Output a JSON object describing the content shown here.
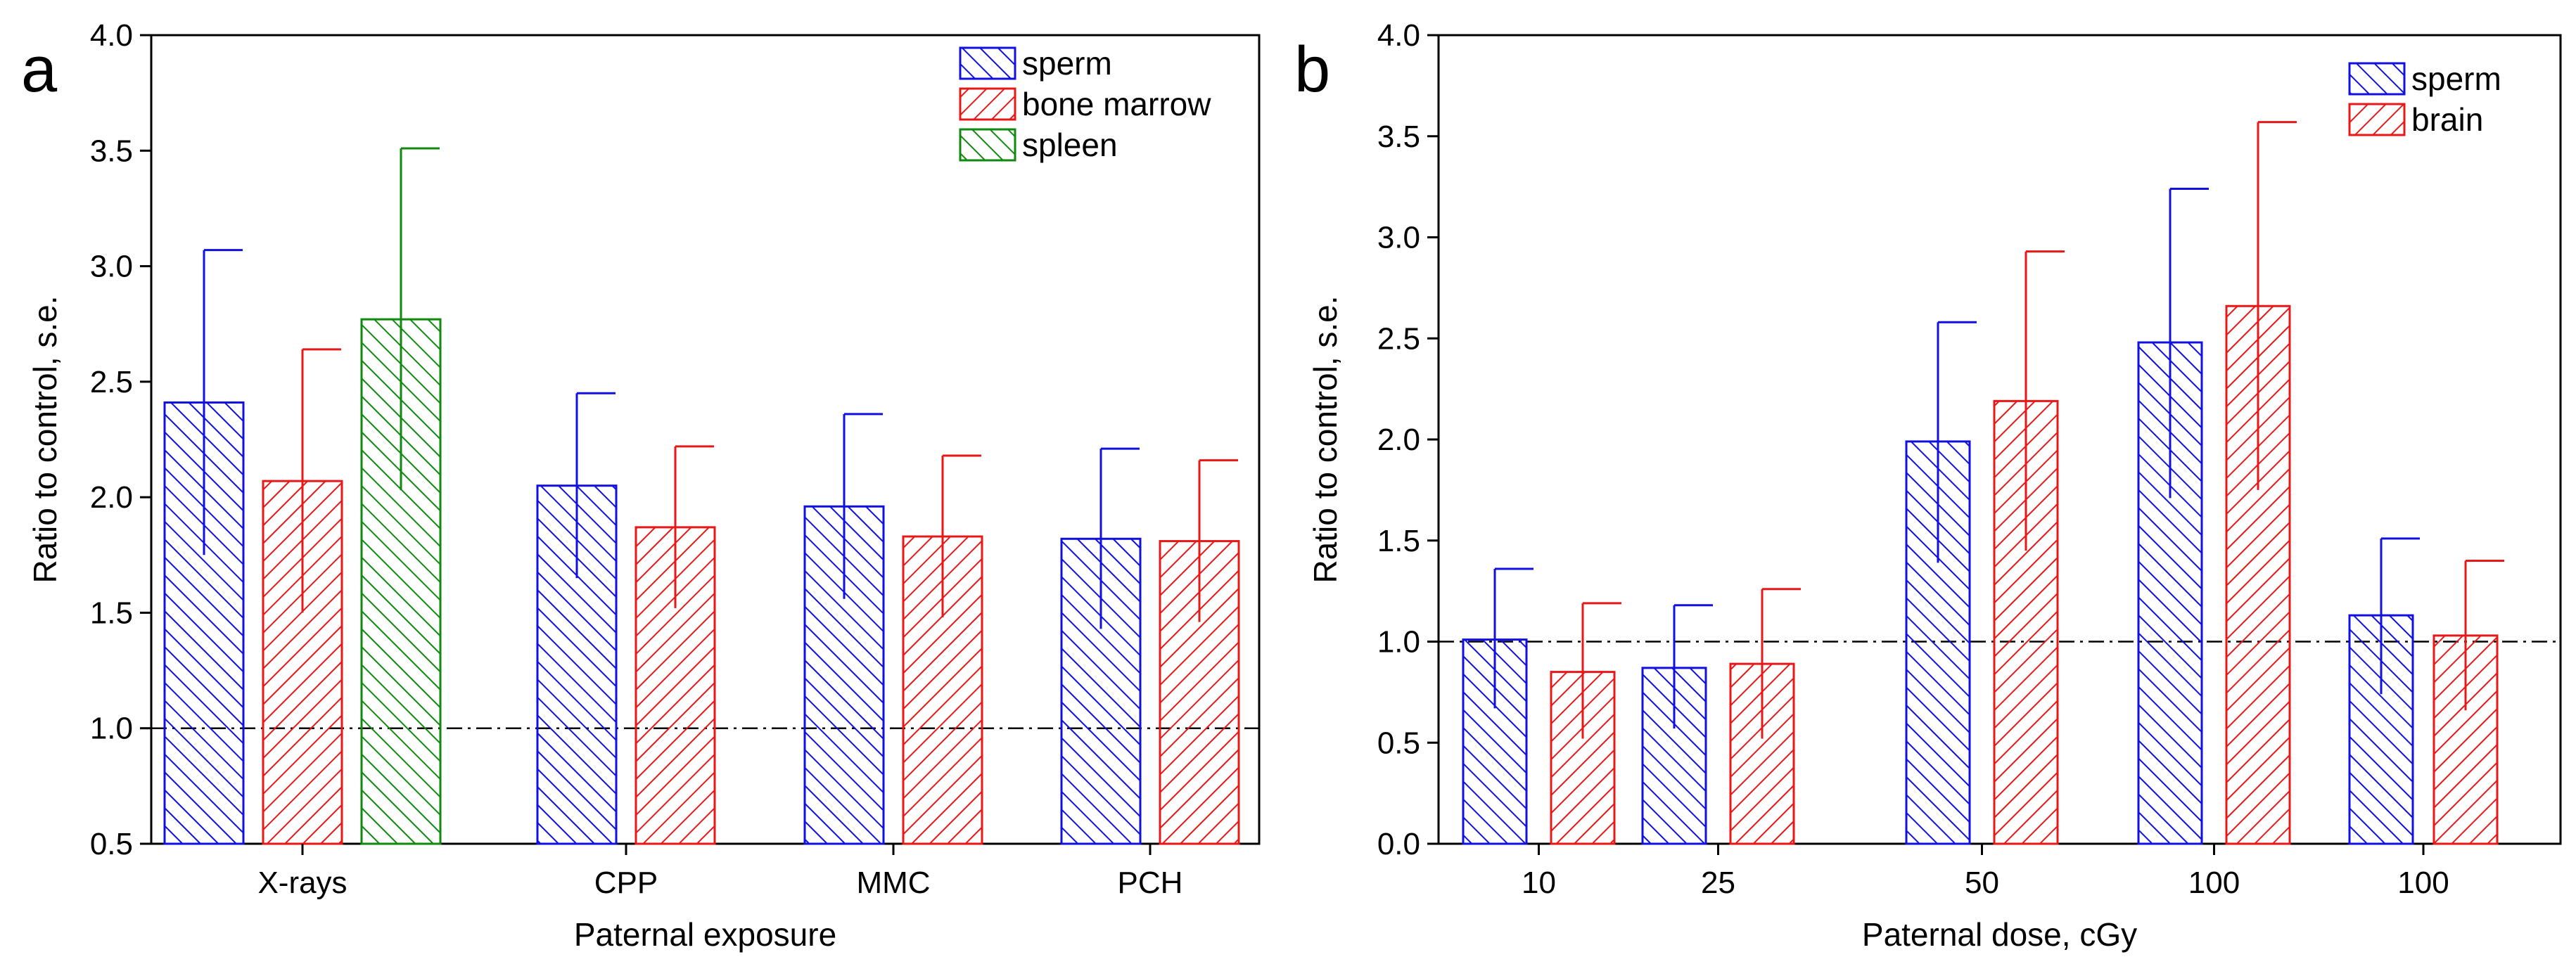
{
  "colors": {
    "blue": "#1010e0",
    "red": "#e81818",
    "green": "#0f8a0f",
    "axis": "#000000"
  },
  "chart_data": [
    {
      "panel": "a",
      "type": "bar",
      "xlabel": "Paternal exposure",
      "ylabel": "Ratio to control, s.e.",
      "ylim": [
        0.5,
        4.0
      ],
      "yticks": [
        "0.5",
        "1.0",
        "1.5",
        "2.0",
        "2.5",
        "3.0",
        "3.5",
        "4.0"
      ],
      "reference_line": 1.0,
      "legend_position": "top-right",
      "categories": [
        "X-rays",
        "CPP",
        "MMC",
        "PCH"
      ],
      "series": [
        {
          "name": "sperm",
          "color": "blue",
          "hatch": "back",
          "values": [
            2.41,
            2.05,
            1.96,
            1.82
          ],
          "err_low": [
            1.75,
            1.65,
            1.56,
            1.43
          ],
          "err_high": [
            3.07,
            2.45,
            2.36,
            2.21
          ]
        },
        {
          "name": "bone marrow",
          "color": "red",
          "hatch": "fwd",
          "values": [
            2.07,
            1.87,
            1.83,
            1.81
          ],
          "err_low": [
            1.5,
            1.52,
            1.48,
            1.46
          ],
          "err_high": [
            2.64,
            2.22,
            2.18,
            2.16
          ]
        },
        {
          "name": "spleen",
          "color": "green",
          "hatch": "back",
          "values": [
            2.77,
            null,
            null,
            null
          ],
          "err_low": [
            2.03,
            null,
            null,
            null
          ],
          "err_high": [
            3.51,
            null,
            null,
            null
          ]
        }
      ]
    },
    {
      "panel": "b",
      "type": "bar",
      "xlabel": "Paternal dose, cGy",
      "ylabel": "Ratio to control, s.e.",
      "ylim": [
        0.0,
        4.0
      ],
      "yticks": [
        "0.0",
        "0.5",
        "1.0",
        "1.5",
        "2.0",
        "2.5",
        "3.0",
        "3.5",
        "4.0"
      ],
      "reference_line": 1.0,
      "legend_position": "top-right",
      "categories": [
        "10",
        "25",
        "50",
        "100",
        "100"
      ],
      "series": [
        {
          "name": "sperm",
          "color": "blue",
          "hatch": "back",
          "values": [
            1.01,
            0.87,
            1.99,
            2.48,
            1.13
          ],
          "err_low": [
            0.67,
            0.57,
            1.39,
            1.71,
            0.74
          ],
          "err_high": [
            1.36,
            1.18,
            2.58,
            3.24,
            1.51
          ]
        },
        {
          "name": "brain",
          "color": "red",
          "hatch": "fwd",
          "values": [
            0.85,
            0.89,
            2.19,
            2.66,
            1.03
          ],
          "err_low": [
            0.52,
            0.52,
            1.45,
            1.75,
            0.66
          ],
          "err_high": [
            1.19,
            1.26,
            2.93,
            3.57,
            1.4
          ]
        }
      ]
    }
  ]
}
